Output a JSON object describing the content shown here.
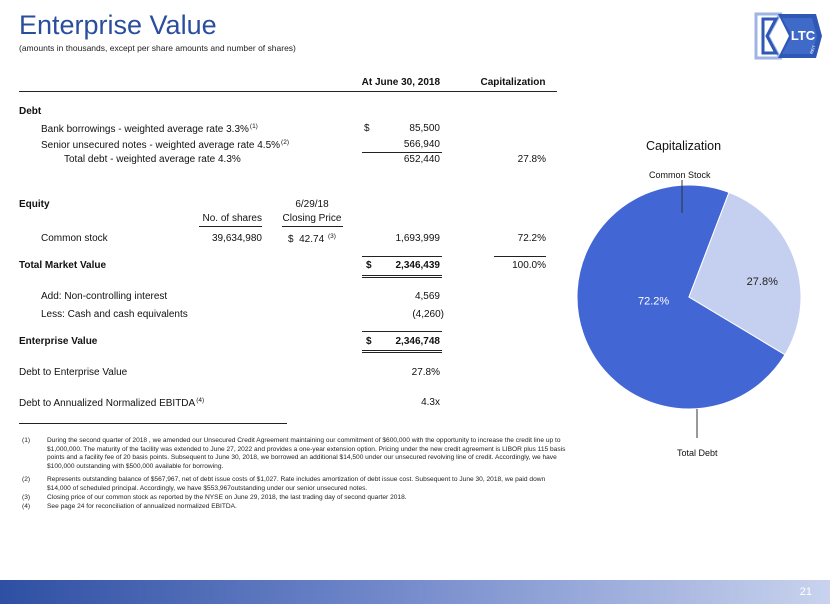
{
  "header": {
    "title": "Enterprise Value",
    "subtitle": "(amounts in thousands, except per share amounts and number of shares)",
    "logo_text": "LTC",
    "logo_subtext": "REIT"
  },
  "table": {
    "col_at_date": "At June 30, 2018",
    "col_capitalization": "Capitalization",
    "debt_heading": "Debt",
    "bank_label": "Bank borrowings - weighted average rate 3.3%",
    "bank_note": "(1)",
    "bank_currency": "$",
    "bank_value": "85,500",
    "senior_label": "Senior unsecured notes - weighted average rate 4.5%",
    "senior_note": "(2)",
    "senior_value": "566,940",
    "total_debt_label": "Total debt - weighted average rate 4.3%",
    "total_debt_value": "652,440",
    "total_debt_pct": "27.8%",
    "equity_heading": "Equity",
    "col_date": "6/29/18",
    "col_shares": "No. of shares",
    "col_price": "Closing Price",
    "common_label": "Common stock",
    "common_shares": "39,634,980",
    "common_price_currency": "$",
    "common_price": "42.74",
    "common_price_note": "(3)",
    "common_value": "1,693,999",
    "common_pct": "72.2%",
    "tmv_label": "Total Market Value",
    "tmv_currency": "$",
    "tmv_value": "2,346,439",
    "tmv_pct": "100.0%",
    "nci_label": "Add:  Non-controlling interest",
    "nci_value": "4,569",
    "cash_label": "Less:  Cash and cash equivalents",
    "cash_value": "(4,260)",
    "ev_label": "Enterprise Value",
    "ev_currency": "$",
    "ev_value": "2,346,748",
    "dte_label": "Debt to Enterprise Value",
    "dte_value": "27.8%",
    "dtebitda_label": "Debt to Annualized Normalized EBITDA",
    "dtebitda_note": "(4)",
    "dtebitda_value": "4.3x"
  },
  "footnotes": [
    {
      "num": "(1)",
      "text": "During the second quarter of 2018 , we amended our Unsecured Credit Agreement maintaining our commitment of $600,000 with the opportunity to increase the credit line up to $1,000,000.  The maturity of the facility was extended to June 27, 2022 and provides a one-year extension option.  Pricing under the new credit  agreement is LIBOR plus 115 basis points and a facility fee of 20 basis points.  Subsequent to June 30, 2018, we borrowed an additional $14,500 under our unsecured revolving line of credit.  Accordingly, we have $100,000 outstanding with $500,000 available for borrowing."
    },
    {
      "num": "(2)",
      "text": "Represents outstanding balance of $567,967, net of debt issue costs of $1,027.  Rate includes amortization of debt issue cost. Subsequent to June 30, 2018, we paid down $14,000 of scheduled principal.  Accordingly, we have $553,967outstanding under our senior unsecured notes."
    },
    {
      "num": "(3)",
      "text": "Closing price of our common stock as reported by the NYSE on June 29, 2018, the last trading day of second quarter 2018."
    },
    {
      "num": "(4)",
      "text": "See page 24 for reconciliation of annualized normalized EBITDA."
    }
  ],
  "chart_data": {
    "type": "pie",
    "title": "Capitalization",
    "categories": [
      "Common Stock",
      "Total Debt"
    ],
    "values": [
      72.2,
      27.8
    ],
    "data_labels": [
      "72.2%",
      "27.8%"
    ],
    "colors": [
      "#4266d4",
      "#c5d0f0"
    ]
  },
  "footer": {
    "page_number": "21"
  }
}
